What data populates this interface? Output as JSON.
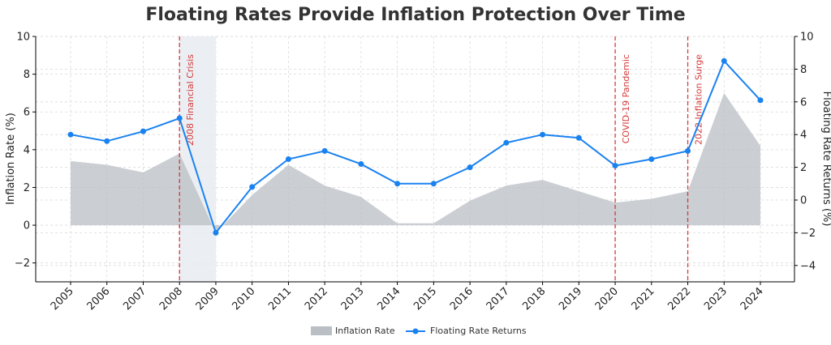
{
  "chart_data": {
    "type": "line",
    "title": "Floating Rates Provide Inflation Protection Over Time",
    "x": [
      "2005",
      "2006",
      "2007",
      "2008",
      "2009",
      "2010",
      "2011",
      "2012",
      "2013",
      "2014",
      "2015",
      "2016",
      "2017",
      "2018",
      "2019",
      "2020",
      "2021",
      "2022",
      "2023",
      "2024"
    ],
    "xlabel": "",
    "ylabel_left": "Inflation Rate (%)",
    "ylabel_right": "Floating Rate Returns (%)",
    "ylim_left": [
      -3,
      10
    ],
    "ylim_right": [
      -5,
      10
    ],
    "yticks_left": [
      -2,
      0,
      2,
      4,
      6,
      8,
      10
    ],
    "yticks_right": [
      -4,
      -2,
      0,
      2,
      4,
      6,
      8,
      10
    ],
    "grid": true,
    "legend_position": "bottom-center",
    "series": [
      {
        "name": "Inflation Rate",
        "kind": "area",
        "axis": "left",
        "color": "#b9bfc4",
        "values": [
          3.4,
          3.2,
          2.8,
          3.8,
          -0.4,
          1.6,
          3.2,
          2.1,
          1.5,
          0.1,
          0.1,
          1.3,
          2.1,
          2.4,
          1.8,
          1.2,
          1.4,
          1.8,
          7.0,
          4.2
        ]
      },
      {
        "name": "Floating Rate Returns",
        "kind": "line",
        "axis": "right",
        "color": "#1a82f0",
        "values": [
          4.0,
          3.6,
          4.2,
          5.0,
          -2.0,
          0.8,
          2.5,
          3.0,
          2.2,
          1.0,
          1.0,
          2.0,
          3.5,
          4.0,
          3.8,
          2.1,
          2.5,
          3.0,
          8.5,
          6.1
        ]
      }
    ],
    "shaded_region": {
      "x_start": "2008",
      "x_end": "2009",
      "color": "#e8ecf1"
    },
    "annotations": [
      {
        "x": "2008",
        "label": "2008 Financial Crisis",
        "color": "#d43a3a"
      },
      {
        "x": "2020",
        "label": "COVID-19 Pandemic",
        "color": "#d43a3a"
      },
      {
        "x": "2022",
        "label": "2022 Inflation Surge",
        "color": "#d43a3a"
      }
    ]
  }
}
